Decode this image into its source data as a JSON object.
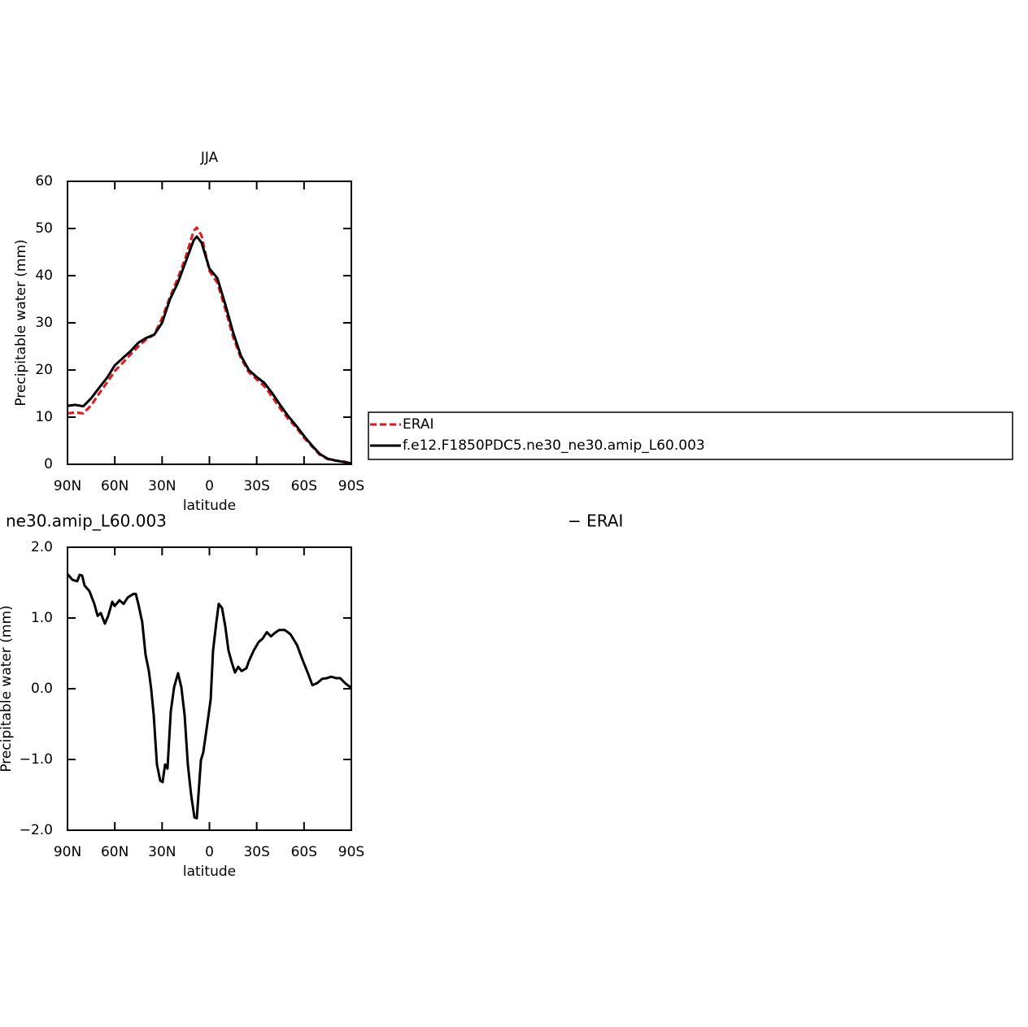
{
  "chart_data": [
    {
      "type": "line",
      "title": "JJA",
      "xlabel": "latitude",
      "ylabel": "Precipitable water (mm)",
      "x": [
        90,
        85,
        80,
        75,
        70,
        65,
        60,
        55,
        50,
        45,
        40,
        35,
        30,
        25,
        20,
        15,
        10,
        8,
        5,
        0,
        -5,
        -10,
        -15,
        -20,
        -25,
        -30,
        -35,
        -40,
        -45,
        -50,
        -55,
        -60,
        -65,
        -70,
        -75,
        -80,
        -85,
        -90
      ],
      "series": [
        {
          "name": "ERAI",
          "color": "#e8141b",
          "line_style": "dashed",
          "values": [
            10.8,
            11.0,
            10.8,
            12.5,
            15,
            17.3,
            19.8,
            21.5,
            23.3,
            25,
            26.5,
            27.5,
            31,
            35.5,
            39.5,
            44,
            49.5,
            50.2,
            48.5,
            41,
            38.5,
            33,
            27,
            22.5,
            19.5,
            18,
            16.5,
            14.2,
            11.8,
            9.6,
            7.8,
            5.6,
            3.8,
            2,
            1.1,
            0.8,
            0.6,
            0.2
          ]
        },
        {
          "name": "f.e12.F1850PDC5.ne30_ne30.amip_L60.003",
          "color": "#000000",
          "line_style": "solid",
          "values": [
            12.4,
            12.6,
            12.3,
            14.0,
            16.2,
            18.3,
            21.0,
            22.5,
            24.0,
            25.8,
            26.8,
            27.5,
            30.0,
            35.0,
            38.5,
            43,
            47.5,
            48.3,
            47,
            41.5,
            39.5,
            34,
            28,
            23,
            20,
            18.5,
            17.2,
            15,
            12.5,
            10.2,
            8.2,
            6,
            4,
            2.2,
            1.2,
            0.8,
            0.5,
            0.2
          ]
        }
      ],
      "xlim": [
        90,
        -90
      ],
      "xticks": [
        {
          "value": 90,
          "label": "90N"
        },
        {
          "value": 60,
          "label": "60N"
        },
        {
          "value": 30,
          "label": "30N"
        },
        0,
        {
          "value": -30,
          "label": "30S"
        },
        {
          "value": -60,
          "label": "60S"
        },
        {
          "value": -90,
          "label": "90S"
        }
      ],
      "ylim": [
        0,
        60
      ],
      "yticks": [
        0,
        10,
        20,
        30,
        40,
        50,
        60
      ],
      "legend": "right"
    },
    {
      "type": "line",
      "title_left": "ne30.amip_L60.003",
      "title_right": "− ERAI",
      "xlabel": "latitude",
      "ylabel": "Precipitable water (mm)",
      "x": [
        90,
        86.9,
        83.8,
        82.3,
        80.7,
        79.2,
        76.1,
        73,
        70.9,
        68.9,
        66.3,
        64.2,
        61.6,
        60.1,
        57,
        54.4,
        51.8,
        48.2,
        46.7,
        45.1,
        42.6,
        40.5,
        38.4,
        36.9,
        35.3,
        33.3,
        31.2,
        29.7,
        28.1,
        26.6,
        24.5,
        22.4,
        19.9,
        17.8,
        15.7,
        13.7,
        11.6,
        9.5,
        8.0,
        5.4,
        3.9,
        1.3,
        -0.8,
        -2.3,
        -4.4,
        -5.9,
        -8.0,
        -10,
        -12.1,
        -14.2,
        -16.2,
        -18.3,
        -20.4,
        -23.5,
        -25,
        -28.1,
        -31.2,
        -33.8,
        -36.4,
        -39,
        -41.6,
        -44.2,
        -47.8,
        -51.4,
        -55.5,
        -59.2,
        -62.8,
        -65.3,
        -68.4,
        -71.5,
        -74.6,
        -77.2,
        -80.3,
        -82.9,
        -86,
        -90
      ],
      "series": [
        {
          "color": "#000000",
          "line_style": "solid",
          "values": [
            1.62,
            1.54,
            1.52,
            1.61,
            1.6,
            1.46,
            1.38,
            1.2,
            1.03,
            1.07,
            0.92,
            1.03,
            1.23,
            1.17,
            1.25,
            1.2,
            1.29,
            1.34,
            1.34,
            1.2,
            0.94,
            0.48,
            0.25,
            -0.01,
            -0.38,
            -1.07,
            -1.3,
            -1.32,
            -1.07,
            -1.13,
            -0.32,
            0.02,
            0.22,
            0.02,
            -0.38,
            -1.07,
            -1.5,
            -1.82,
            -1.83,
            -1.01,
            -0.9,
            -0.49,
            -0.15,
            0.54,
            0.94,
            1.2,
            1.14,
            0.89,
            0.54,
            0.37,
            0.23,
            0.31,
            0.25,
            0.29,
            0.39,
            0.54,
            0.66,
            0.71,
            0.8,
            0.74,
            0.79,
            0.83,
            0.83,
            0.77,
            0.62,
            0.4,
            0.2,
            0.05,
            0.08,
            0.14,
            0.15,
            0.17,
            0.15,
            0.15,
            0.08,
            0.01
          ]
        }
      ],
      "xlim": [
        90,
        -90
      ],
      "xticks": [
        {
          "value": 90,
          "label": "90N"
        },
        {
          "value": 60,
          "label": "60N"
        },
        {
          "value": 30,
          "label": "30N"
        },
        0,
        {
          "value": -30,
          "label": "30S"
        },
        {
          "value": -60,
          "label": "60S"
        },
        {
          "value": -90,
          "label": "90S"
        }
      ],
      "ylim": [
        -2,
        2
      ],
      "yticks": [
        {
          "value": -2,
          "label": "−2.0"
        },
        {
          "value": -1,
          "label": "−1.0"
        },
        {
          "value": 0,
          "label": "0.0"
        },
        {
          "value": 1,
          "label": "1.0"
        },
        {
          "value": 2,
          "label": "2.0"
        }
      ]
    }
  ]
}
